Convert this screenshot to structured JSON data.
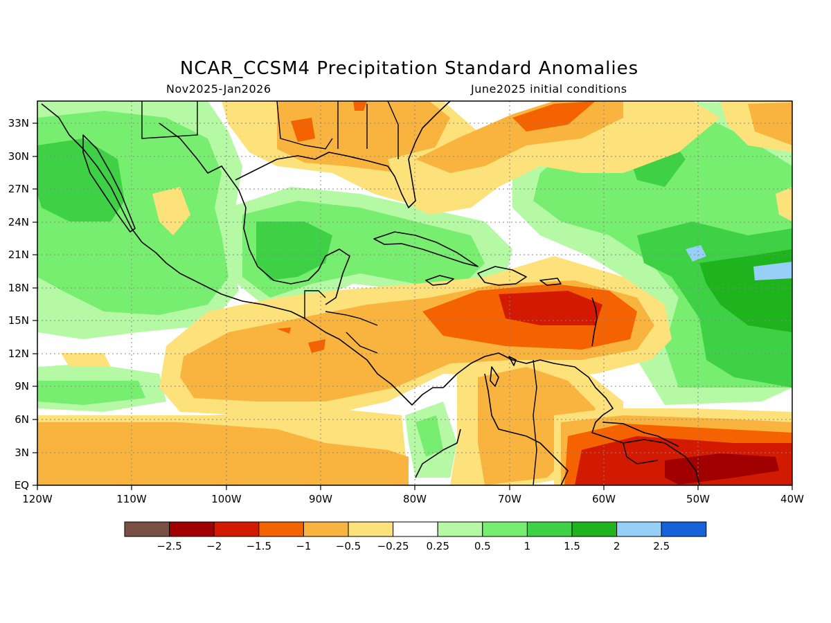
{
  "title": "NCAR_CCSM4 Precipitation Standard Anomalies",
  "subtitle_left": "Nov2025-Jan2026",
  "subtitle_right": "June2025 initial conditions",
  "axes": {
    "lon_labels": [
      "120W",
      "110W",
      "100W",
      "90W",
      "80W",
      "70W",
      "60W",
      "50W",
      "40W"
    ],
    "lat_labels": [
      "EQ",
      "3N",
      "6N",
      "9N",
      "12N",
      "15N",
      "18N",
      "21N",
      "24N",
      "27N",
      "30N",
      "33N"
    ],
    "lon_range": [
      -120,
      -40
    ],
    "lat_range": [
      0,
      35
    ],
    "grid": "dotted"
  },
  "colorbar": {
    "colors": [
      "#7a4f45",
      "#a00000",
      "#d21a00",
      "#f56200",
      "#f8b43e",
      "#fde17a",
      "#ffffff",
      "#b5f9a5",
      "#78ee70",
      "#3ed145",
      "#1fb41e",
      "#96d0f8",
      "#1662d8"
    ],
    "labels": [
      "−2.5",
      "−2",
      "−1.5",
      "−1",
      "−0.5",
      "−0.25",
      "0.25",
      "0.5",
      "1",
      "1.5",
      "2",
      "2.5"
    ]
  }
}
